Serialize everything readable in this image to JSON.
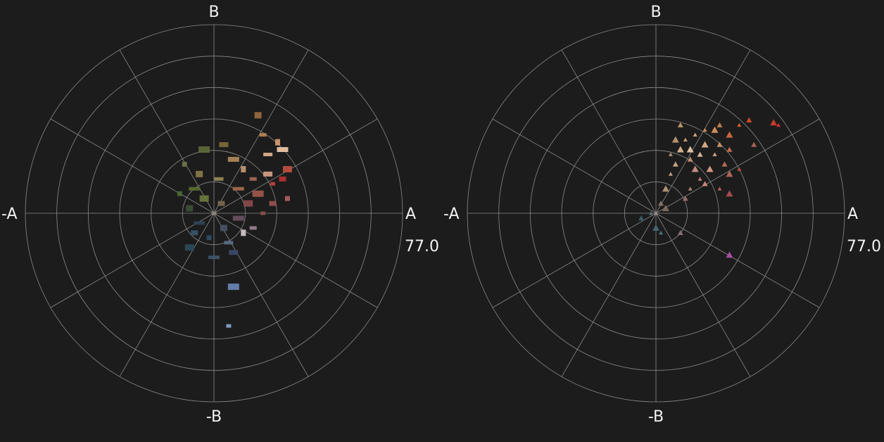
{
  "charts": [
    {
      "axis_labels": {
        "b": "B",
        "neg_b": "-B",
        "a": "A",
        "neg_a": "-A"
      },
      "max_label": "77.0"
    },
    {
      "axis_labels": {
        "b": "B",
        "neg_b": "-B",
        "a": "A",
        "neg_a": "-A"
      },
      "max_label": "77.0"
    }
  ],
  "colors": {
    "background": "#1c1c1c",
    "grid": "#8a8a8a",
    "text": "#f2f2f2"
  },
  "chart_data": [
    {
      "type": "scatter",
      "title": "",
      "subtitle": "",
      "coordinate_system": "polar (a, b)",
      "r_max": 77.0,
      "rings": 6,
      "spokes_deg": [
        0,
        30,
        60,
        90,
        120,
        150,
        180,
        210,
        240,
        270,
        300,
        330
      ],
      "grid": true,
      "tick_labels": [
        "B",
        "-B",
        "A",
        "-A",
        "77.0"
      ],
      "marker": "image thumbnail",
      "points": [
        {
          "a": 0,
          "b": 0,
          "color": "#8a8476"
        },
        {
          "a": 3,
          "b": 4,
          "color": "#7a6a4e"
        },
        {
          "a": -4,
          "b": 6,
          "color": "#6b7a3c"
        },
        {
          "a": -8,
          "b": 10,
          "color": "#5a6e2e"
        },
        {
          "a": -12,
          "b": 20,
          "color": "#6d7646"
        },
        {
          "a": -6,
          "b": 16,
          "color": "#8a7a4a"
        },
        {
          "a": 2,
          "b": 14,
          "color": "#9a8a5a"
        },
        {
          "a": 8,
          "b": 22,
          "color": "#b08a5a"
        },
        {
          "a": 12,
          "b": 18,
          "color": "#c49a74"
        },
        {
          "a": 16,
          "b": 14,
          "color": "#a86a54"
        },
        {
          "a": 22,
          "b": 16,
          "color": "#d8a088"
        },
        {
          "a": 18,
          "b": 8,
          "color": "#a0584a"
        },
        {
          "a": 24,
          "b": 12,
          "color": "#c24040"
        },
        {
          "a": 28,
          "b": 14,
          "color": "#b83232"
        },
        {
          "a": 14,
          "b": 4,
          "color": "#8c4a4a"
        },
        {
          "a": 10,
          "b": 10,
          "color": "#a46c4c"
        },
        {
          "a": -14,
          "b": 8,
          "color": "#4a6a34"
        },
        {
          "a": -10,
          "b": 2,
          "color": "#3e4e3a"
        },
        {
          "a": 22,
          "b": 24,
          "color": "#e0b090"
        },
        {
          "a": 28,
          "b": 26,
          "color": "#f0c8a8"
        },
        {
          "a": 26,
          "b": 29,
          "color": "#d89a70"
        },
        {
          "a": 20,
          "b": 32,
          "color": "#b88452"
        },
        {
          "a": 4,
          "b": 28,
          "color": "#7e6c3a"
        },
        {
          "a": -4,
          "b": 26,
          "color": "#5e6a38"
        },
        {
          "a": 20,
          "b": 0,
          "color": "#8c4e4e"
        },
        {
          "a": 24,
          "b": 4,
          "color": "#9a5050"
        },
        {
          "a": 30,
          "b": 18,
          "color": "#c05040"
        },
        {
          "a": -6,
          "b": -4,
          "color": "#2e4458"
        },
        {
          "a": -2,
          "b": -10,
          "color": "#304e68"
        },
        {
          "a": 4,
          "b": -6,
          "color": "#4a5264"
        },
        {
          "a": 6,
          "b": -12,
          "color": "#5a6c88"
        },
        {
          "a": 10,
          "b": -2,
          "color": "#6a5060"
        },
        {
          "a": 12,
          "b": -8,
          "color": "#d0c8cc"
        },
        {
          "a": 16,
          "b": -6,
          "color": "#a08090"
        },
        {
          "a": 8,
          "b": -16,
          "color": "#3a4a6a"
        },
        {
          "a": 8,
          "b": -30,
          "color": "#6a86b4"
        },
        {
          "a": 6,
          "b": -46,
          "color": "#8aa4cc"
        },
        {
          "a": -8,
          "b": -8,
          "color": "#38566e"
        },
        {
          "a": -10,
          "b": -14,
          "color": "#2c4a5a"
        },
        {
          "a": 0,
          "b": -18,
          "color": "#40566c"
        },
        {
          "a": 30,
          "b": 6,
          "color": "#b06060"
        },
        {
          "a": 18,
          "b": 40,
          "color": "#9a6a40"
        }
      ]
    },
    {
      "type": "scatter",
      "title": "",
      "subtitle": "",
      "coordinate_system": "polar (a, b)",
      "r_max": 77.0,
      "rings": 6,
      "spokes_deg": [
        0,
        30,
        60,
        90,
        120,
        150,
        180,
        210,
        240,
        270,
        300,
        330
      ],
      "grid": true,
      "tick_labels": [
        "B",
        "-B",
        "A",
        "-A",
        "77.0"
      ],
      "marker": "image fragment",
      "points": [
        {
          "a": 0,
          "b": 0,
          "color": "#9a9080"
        },
        {
          "a": 2,
          "b": 4,
          "color": "#8a7c68"
        },
        {
          "a": 4,
          "b": 10,
          "color": "#b89a7a"
        },
        {
          "a": 6,
          "b": 16,
          "color": "#c8a888"
        },
        {
          "a": 8,
          "b": 20,
          "color": "#d4b08c"
        },
        {
          "a": 10,
          "b": 26,
          "color": "#e0bc94"
        },
        {
          "a": 12,
          "b": 30,
          "color": "#d8a878"
        },
        {
          "a": 14,
          "b": 22,
          "color": "#c89478"
        },
        {
          "a": 16,
          "b": 18,
          "color": "#d09888"
        },
        {
          "a": 18,
          "b": 14,
          "color": "#c88478"
        },
        {
          "a": 20,
          "b": 12,
          "color": "#d89080"
        },
        {
          "a": 22,
          "b": 18,
          "color": "#e0a088"
        },
        {
          "a": 24,
          "b": 24,
          "color": "#e8b090"
        },
        {
          "a": 26,
          "b": 28,
          "color": "#d89868"
        },
        {
          "a": 20,
          "b": 28,
          "color": "#e4b48c"
        },
        {
          "a": 16,
          "b": 32,
          "color": "#dcb088"
        },
        {
          "a": 10,
          "b": 36,
          "color": "#c8a070"
        },
        {
          "a": 8,
          "b": 30,
          "color": "#c09a74"
        },
        {
          "a": 6,
          "b": 24,
          "color": "#b89a80"
        },
        {
          "a": 28,
          "b": 20,
          "color": "#c87060"
        },
        {
          "a": 30,
          "b": 16,
          "color": "#b86a5c"
        },
        {
          "a": 34,
          "b": 18,
          "color": "#c05040"
        },
        {
          "a": 30,
          "b": 26,
          "color": "#d07050"
        },
        {
          "a": 24,
          "b": 34,
          "color": "#e09860"
        },
        {
          "a": 20,
          "b": 34,
          "color": "#d89858"
        },
        {
          "a": 26,
          "b": 36,
          "color": "#c88850"
        },
        {
          "a": 30,
          "b": 32,
          "color": "#d86a40"
        },
        {
          "a": 34,
          "b": 36,
          "color": "#e06030"
        },
        {
          "a": 38,
          "b": 38,
          "color": "#e05028"
        },
        {
          "a": 48,
          "b": 37,
          "color": "#d04030"
        },
        {
          "a": 50,
          "b": 36,
          "color": "#e03030"
        },
        {
          "a": 40,
          "b": 28,
          "color": "#b06858"
        },
        {
          "a": 30,
          "b": 8,
          "color": "#b05050"
        },
        {
          "a": 26,
          "b": 10,
          "color": "#c06060"
        },
        {
          "a": 12,
          "b": 6,
          "color": "#a07070"
        },
        {
          "a": 4,
          "b": 2,
          "color": "#807060"
        },
        {
          "a": -2,
          "b": 0,
          "color": "#5a7080"
        },
        {
          "a": -6,
          "b": -2,
          "color": "#3a6070"
        },
        {
          "a": 0,
          "b": -6,
          "color": "#4a6878"
        },
        {
          "a": 2,
          "b": -8,
          "color": "#5a7888"
        },
        {
          "a": 10,
          "b": -8,
          "color": "#907080"
        },
        {
          "a": 30,
          "b": -17,
          "color": "#b050a8"
        },
        {
          "a": 14,
          "b": 10,
          "color": "#b89080"
        },
        {
          "a": 18,
          "b": 24,
          "color": "#e8c0a0"
        },
        {
          "a": 14,
          "b": 26,
          "color": "#f0d0b0"
        }
      ]
    }
  ]
}
